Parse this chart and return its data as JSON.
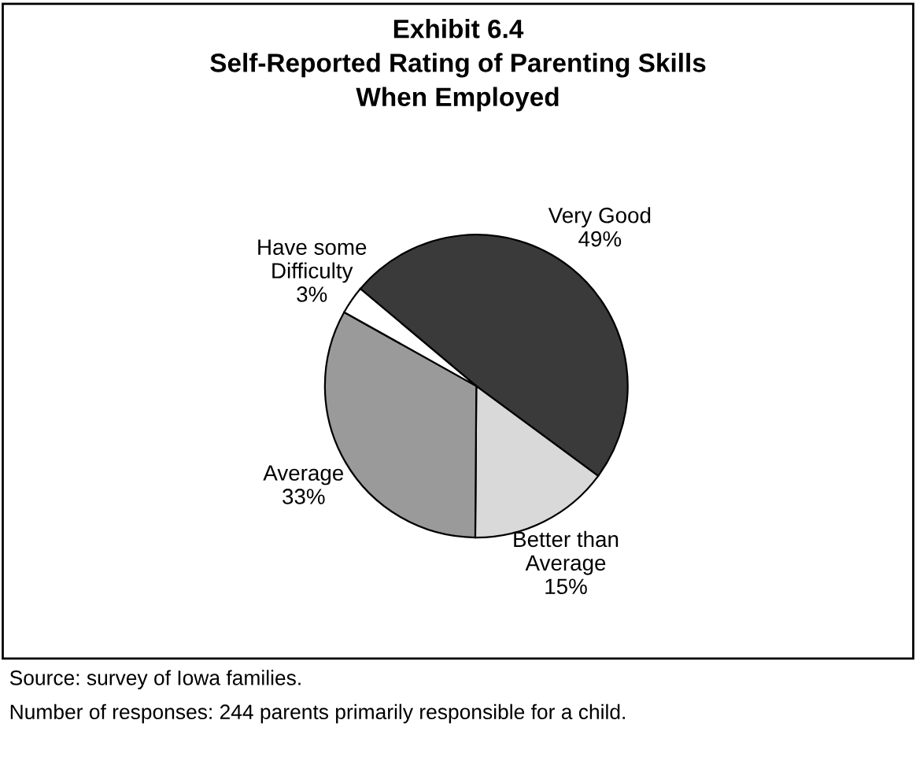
{
  "chart_data": {
    "type": "pie",
    "title": "Exhibit 6.4\nSelf-Reported Rating of Parenting Skills\nWhen Employed",
    "categories": [
      "Very Good",
      "Better than\nAverage",
      "Average",
      "Have some\nDifficulty"
    ],
    "values": [
      49,
      15,
      33,
      3
    ],
    "value_labels": [
      "49%",
      "15%",
      "33%",
      "3%"
    ],
    "colors": [
      "#3a3a3a",
      "#d9d9d9",
      "#9a9a9a",
      "#ffffff"
    ],
    "legend": false,
    "annotations": [
      "Source: survey of Iowa families.",
      "Number of responses: 244 parents primarily responsible for a child."
    ]
  }
}
